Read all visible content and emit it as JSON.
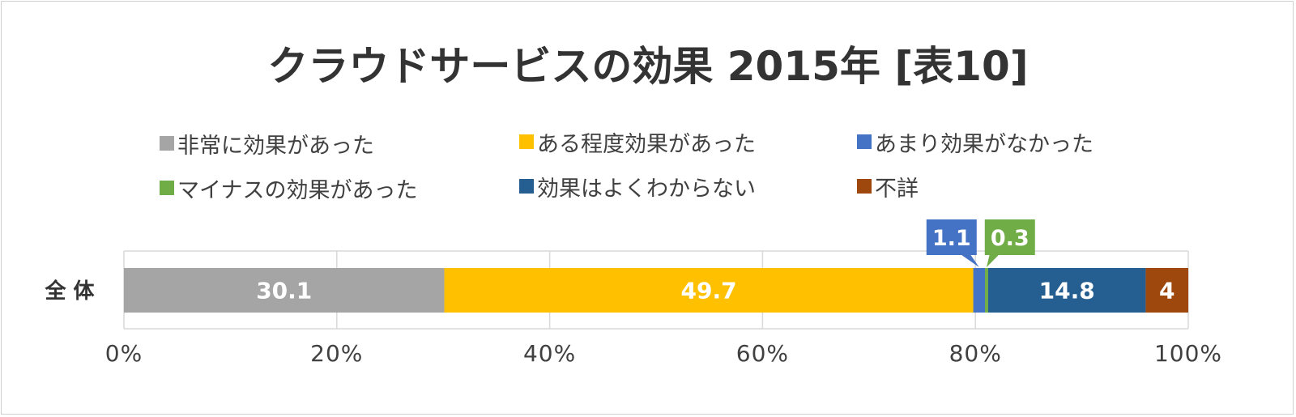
{
  "colors": {
    "gray": "#a5a5a5",
    "yellow": "#ffc000",
    "blue": "#4472c4",
    "green": "#70ad47",
    "darkblue": "#255e91",
    "brown": "#9e480e",
    "grid": "#d9d9d9",
    "text": "#404040"
  },
  "chart_data": {
    "type": "bar",
    "orientation": "horizontal",
    "stacked": "100%",
    "title": "クラウドサービスの効果 2015年 [表10]",
    "categories": [
      "全 体"
    ],
    "series": [
      {
        "name": "非常に効果があった",
        "values": [
          30.1
        ],
        "label": "30.1",
        "color": "#a5a5a5",
        "label_style": "inside"
      },
      {
        "name": "ある程度効果があった",
        "values": [
          49.7
        ],
        "label": "49.7",
        "color": "#ffc000",
        "label_style": "inside"
      },
      {
        "name": "あまり効果がなかった",
        "values": [
          1.1
        ],
        "label": "1.1",
        "color": "#4472c4",
        "label_style": "callout"
      },
      {
        "name": "マイナスの効果があった",
        "values": [
          0.3
        ],
        "label": "0.3",
        "color": "#70ad47",
        "label_style": "callout"
      },
      {
        "name": "効果はよくわからない",
        "values": [
          14.8
        ],
        "label": "14.8",
        "color": "#255e91",
        "label_style": "inside"
      },
      {
        "name": "不詳",
        "values": [
          4
        ],
        "label": "4",
        "color": "#9e480e",
        "label_style": "inside"
      }
    ],
    "xlim": [
      0,
      100
    ],
    "xticks": [
      "0%",
      "20%",
      "40%",
      "60%",
      "80%",
      "100%"
    ],
    "legend_position": "top",
    "grid": true
  }
}
